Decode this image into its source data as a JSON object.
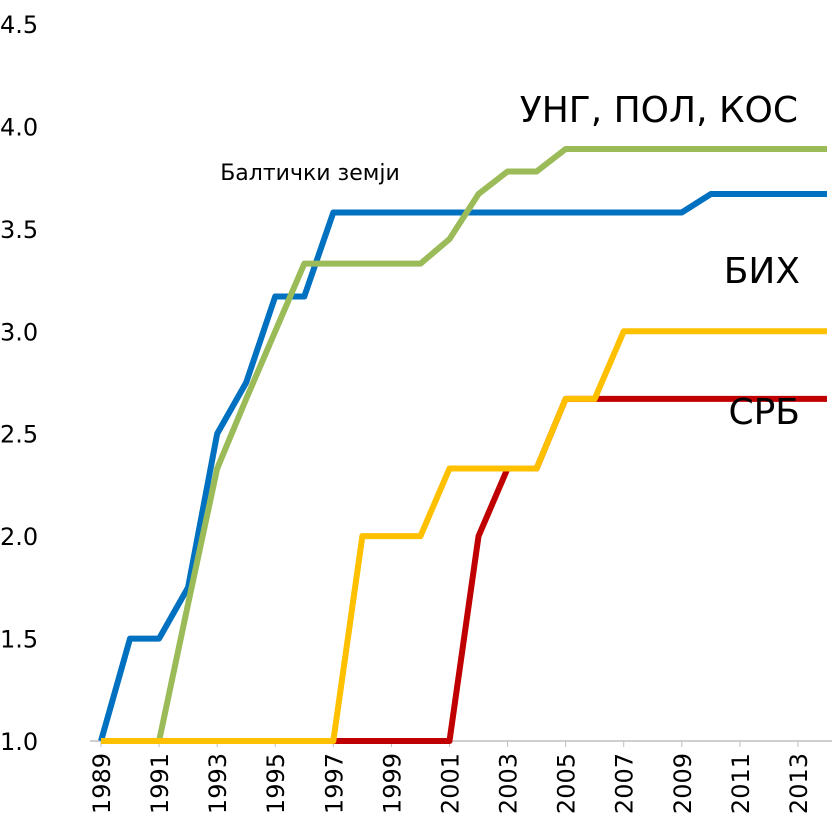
{
  "chart_data": {
    "type": "line",
    "x": [
      1989,
      1990,
      1991,
      1992,
      1993,
      1994,
      1995,
      1996,
      1997,
      1998,
      1999,
      2000,
      2001,
      2002,
      2003,
      2004,
      2005,
      2006,
      2007,
      2008,
      2009,
      2010,
      2011,
      2012,
      2013,
      2014
    ],
    "xlim": [
      1989,
      2014
    ],
    "xticks": [
      1989,
      1991,
      1993,
      1995,
      1997,
      1999,
      2001,
      2003,
      2005,
      2007,
      2009,
      2011,
      2013
    ],
    "ylim": [
      1,
      4.5
    ],
    "yticks": [
      {
        "value": 1,
        "label": "1.0"
      },
      {
        "value": 1.5,
        "label": "1.5"
      },
      {
        "value": 2,
        "label": "2.0"
      },
      {
        "value": 2.5,
        "label": "2.5"
      },
      {
        "value": 3,
        "label": "3.0"
      },
      {
        "value": 3.5,
        "label": "3.5"
      },
      {
        "value": 4,
        "label": "4.0"
      },
      {
        "value": 4.5,
        "label": "4.5"
      }
    ],
    "grid": false,
    "series": [
      {
        "name": "Балтички земји",
        "color": "#0070c0",
        "values": [
          1,
          1.5,
          1.5,
          1.75,
          2.5,
          2.75,
          3.17,
          3.17,
          3.58,
          3.58,
          3.58,
          3.58,
          3.58,
          3.58,
          3.58,
          3.58,
          3.58,
          3.58,
          3.58,
          3.58,
          3.58,
          3.67,
          3.67,
          3.67,
          3.67,
          3.67
        ]
      },
      {
        "name": "УНГ, ПОЛ, КОС",
        "color": "#9bbb59",
        "values": [
          1,
          1,
          1,
          1.67,
          2.33,
          2.67,
          3,
          3.33,
          3.33,
          3.33,
          3.33,
          3.33,
          3.45,
          3.67,
          3.78,
          3.78,
          3.89,
          3.89,
          3.89,
          3.89,
          3.89,
          3.89,
          3.89,
          3.89,
          3.89,
          3.89
        ]
      },
      {
        "name": "СРБ",
        "color": "#c00000",
        "values": [
          1,
          1,
          1,
          1,
          1,
          1,
          1,
          1,
          1,
          1,
          1,
          1,
          1,
          2,
          2.33,
          2.33,
          2.67,
          2.67,
          2.67,
          2.67,
          2.67,
          2.67,
          2.67,
          2.67,
          2.67,
          2.67
        ]
      },
      {
        "name": "БИХ",
        "color": "#ffc000",
        "values": [
          1,
          1,
          1,
          1,
          1,
          1,
          1,
          1,
          1,
          2,
          2,
          2,
          2.33,
          2.33,
          2.33,
          2.33,
          2.67,
          2.67,
          3,
          3,
          3,
          3,
          3,
          3,
          3,
          3
        ]
      }
    ]
  }
}
